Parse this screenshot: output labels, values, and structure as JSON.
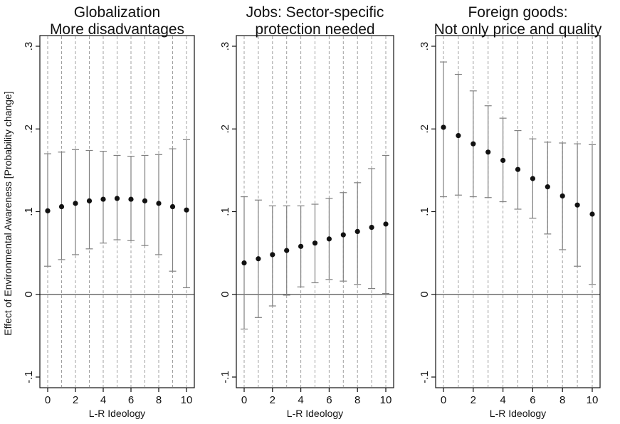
{
  "chart_data": [
    {
      "type": "scatter",
      "title": [
        "Globalization",
        "More disadvantages"
      ],
      "xlabel": "L-R Ideology",
      "ylabel": "Effect of Environmental Awareness [Probability change]",
      "x": [
        0,
        1,
        2,
        3,
        4,
        5,
        6,
        7,
        8,
        9,
        10
      ],
      "y": [
        0.101,
        0.106,
        0.11,
        0.113,
        0.115,
        0.116,
        0.115,
        0.113,
        0.11,
        0.106,
        0.102
      ],
      "ci_low": [
        0.034,
        0.042,
        0.048,
        0.055,
        0.062,
        0.066,
        0.065,
        0.059,
        0.048,
        0.028,
        0.008
      ],
      "ci_high": [
        0.17,
        0.172,
        0.175,
        0.174,
        0.173,
        0.168,
        0.167,
        0.168,
        0.169,
        0.176,
        0.187
      ],
      "xticks": [
        "0",
        "2",
        "4",
        "6",
        "8",
        "10"
      ],
      "yticks": [
        "-.1",
        "0",
        ".1",
        ".2",
        ".3"
      ],
      "xlim": [
        0,
        10
      ],
      "ylim": [
        -0.1,
        0.3
      ],
      "reference_line": 0,
      "vertical_grid": "dashed"
    },
    {
      "type": "scatter",
      "title": [
        "Jobs: Sector-specific",
        "protection needed"
      ],
      "xlabel": "L-R Ideology",
      "ylabel": "",
      "x": [
        0,
        1,
        2,
        3,
        4,
        5,
        6,
        7,
        8,
        9,
        10
      ],
      "y": [
        0.038,
        0.043,
        0.048,
        0.053,
        0.058,
        0.062,
        0.067,
        0.072,
        0.076,
        0.081,
        0.085
      ],
      "ci_low": [
        -0.042,
        -0.028,
        -0.014,
        -0.001,
        0.009,
        0.014,
        0.018,
        0.016,
        0.012,
        0.007,
        0.001
      ],
      "ci_high": [
        0.118,
        0.114,
        0.107,
        0.107,
        0.107,
        0.109,
        0.116,
        0.123,
        0.135,
        0.152,
        0.168
      ],
      "xticks": [
        "0",
        "2",
        "4",
        "6",
        "8",
        "10"
      ],
      "yticks": [
        "-.1",
        "0",
        ".1",
        ".2",
        ".3"
      ],
      "xlim": [
        0,
        10
      ],
      "ylim": [
        -0.1,
        0.3
      ],
      "reference_line": 0,
      "vertical_grid": "dashed"
    },
    {
      "type": "scatter",
      "title": [
        "Foreign goods:",
        "Not only price and quality"
      ],
      "xlabel": "L-R Ideology",
      "ylabel": "",
      "x": [
        0,
        1,
        2,
        3,
        4,
        5,
        6,
        7,
        8,
        9,
        10
      ],
      "y": [
        0.202,
        0.192,
        0.182,
        0.172,
        0.162,
        0.151,
        0.14,
        0.13,
        0.119,
        0.108,
        0.097
      ],
      "ci_low": [
        0.118,
        0.12,
        0.118,
        0.117,
        0.112,
        0.103,
        0.092,
        0.073,
        0.054,
        0.034,
        0.012
      ],
      "ci_high": [
        0.281,
        0.266,
        0.246,
        0.228,
        0.213,
        0.198,
        0.188,
        0.184,
        0.183,
        0.182,
        0.181
      ],
      "xticks": [
        "0",
        "2",
        "4",
        "6",
        "8",
        "10"
      ],
      "yticks": [
        "-.1",
        "0",
        ".1",
        ".2",
        ".3"
      ],
      "xlim": [
        0,
        10
      ],
      "ylim": [
        -0.1,
        0.3
      ],
      "reference_line": 0,
      "vertical_grid": "dashed"
    }
  ],
  "colors": {
    "grid": "#a0a0a0",
    "reference_line": "#6e6e6e",
    "ci": "#808080",
    "point": "#111111",
    "axis": "#111111"
  }
}
